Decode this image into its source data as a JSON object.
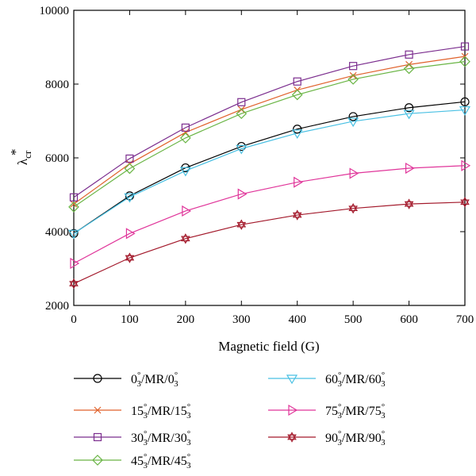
{
  "chart_data": {
    "type": "line",
    "title": "",
    "xlabel": "Magnetic field (G)",
    "ylabel_main": "λ",
    "ylabel_sup": "*",
    "ylabel_sub": "cr",
    "xlim": [
      0,
      700
    ],
    "ylim": [
      2000,
      10000
    ],
    "x_ticks": [
      0,
      100,
      200,
      300,
      400,
      500,
      600,
      700
    ],
    "y_ticks": [
      2000,
      4000,
      6000,
      8000,
      10000
    ],
    "grid": false,
    "legend_position": "below",
    "x": [
      0,
      100,
      200,
      300,
      400,
      500,
      600,
      700
    ],
    "series": [
      {
        "name": "0°3/MR/0°3",
        "a": "0",
        "b": "0",
        "color": "#000000",
        "marker": "circle",
        "values": [
          3950,
          4970,
          5730,
          6310,
          6780,
          7120,
          7360,
          7520
        ]
      },
      {
        "name": "15°3/MR/15°3",
        "a": "15",
        "b": "15",
        "color": "#e0622c",
        "marker": "x",
        "values": [
          4750,
          5840,
          6690,
          7310,
          7840,
          8230,
          8530,
          8750
        ]
      },
      {
        "name": "30°3/MR/30°3",
        "a": "30",
        "b": "30",
        "color": "#7b2d8e",
        "marker": "square",
        "values": [
          4930,
          5980,
          6820,
          7510,
          8070,
          8490,
          8800,
          9020
        ]
      },
      {
        "name": "45°3/MR/45°3",
        "a": "45",
        "b": "45",
        "color": "#6ab545",
        "marker": "diamond",
        "values": [
          4670,
          5710,
          6540,
          7200,
          7710,
          8130,
          8420,
          8610
        ]
      },
      {
        "name": "60°3/MR/60°3",
        "a": "60",
        "b": "60",
        "color": "#49c0e3",
        "marker": "triangle-down",
        "values": [
          3950,
          4940,
          5650,
          6250,
          6670,
          6990,
          7200,
          7300
        ]
      },
      {
        "name": "75°3/MR/75°3",
        "a": "75",
        "b": "75",
        "color": "#e0359a",
        "marker": "triangle-right",
        "values": [
          3140,
          3950,
          4560,
          5020,
          5340,
          5580,
          5720,
          5790
        ]
      },
      {
        "name": "90°3/MR/90°3",
        "a": "90",
        "b": "90",
        "color": "#a3192b",
        "marker": "hexagram",
        "values": [
          2590,
          3290,
          3810,
          4190,
          4450,
          4630,
          4750,
          4800
        ]
      }
    ]
  }
}
